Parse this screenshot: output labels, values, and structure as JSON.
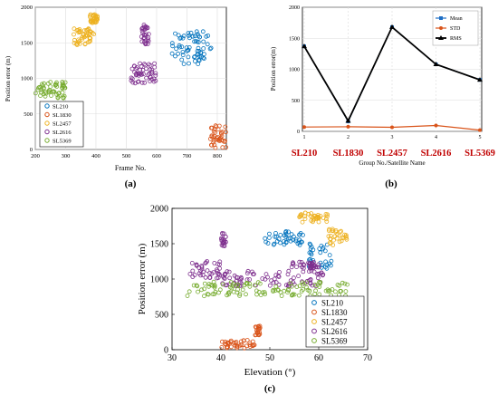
{
  "panel_labels": {
    "a": "(a)",
    "b": "(b)",
    "c": "(c)"
  },
  "colors": {
    "SL210": "#0072BD",
    "SL1830": "#D95319",
    "SL2457": "#EDB120",
    "SL2616": "#7E2F8E",
    "SL5369": "#77AC30",
    "mean": "#1f6fc5",
    "std": "#d9541a",
    "rms": "#000000",
    "satellite_label": "#c00000"
  },
  "chart_data": [
    {
      "id": "a",
      "type": "scatter",
      "xlabel": "Frame No.",
      "ylabel": "Position error (m)",
      "xlim": [
        200,
        830
      ],
      "ylim": [
        0,
        2000
      ],
      "xticks": [
        200,
        300,
        400,
        500,
        600,
        700,
        800
      ],
      "yticks": [
        0,
        500,
        1000,
        1500,
        2000
      ],
      "grid": true,
      "legend_position": "bottom-left",
      "series": [
        {
          "name": "SL210",
          "clusters": [
            {
              "x": [
                650,
                780
              ],
              "y": [
                1200,
                1660
              ]
            }
          ]
        },
        {
          "name": "SL1830",
          "clusters": [
            {
              "x": [
                775,
                830
              ],
              "y": [
                20,
                340
              ]
            }
          ]
        },
        {
          "name": "SL2457",
          "clusters": [
            {
              "x": [
                325,
                395
              ],
              "y": [
                1460,
                1700
              ]
            },
            {
              "x": [
                380,
                405
              ],
              "y": [
                1780,
                1900
              ]
            }
          ]
        },
        {
          "name": "SL2616",
          "clusters": [
            {
              "x": [
                515,
                600
              ],
              "y": [
                930,
                1220
              ]
            },
            {
              "x": [
                550,
                575
              ],
              "y": [
                1480,
                1760
              ]
            }
          ]
        },
        {
          "name": "SL5369",
          "clusters": [
            {
              "x": [
                200,
                300
              ],
              "y": [
                720,
                950
              ]
            }
          ]
        }
      ]
    },
    {
      "id": "b",
      "type": "line",
      "xlabel": "Group No./Satellite Name",
      "ylabel": "Position error(m)",
      "categories": [
        "1",
        "2",
        "3",
        "4",
        "5"
      ],
      "satellite_names": [
        "SL210",
        "SL1830",
        "SL2457",
        "SL2616",
        "SL5369"
      ],
      "ylim": [
        0,
        2000
      ],
      "yticks": [
        0,
        500,
        1000,
        1500,
        2000
      ],
      "grid": true,
      "legend_position": "top-right",
      "series": [
        {
          "name": "Mean",
          "values": [
            1370,
            160,
            1680,
            1080,
            830
          ]
        },
        {
          "name": "STD",
          "values": [
            70,
            75,
            65,
            95,
            20
          ]
        },
        {
          "name": "RMS",
          "values": [
            1370,
            170,
            1680,
            1080,
            830
          ]
        }
      ]
    },
    {
      "id": "c",
      "type": "scatter",
      "xlabel": "Elevation (°)",
      "ylabel": "Position error (m)",
      "xlim": [
        30,
        70
      ],
      "ylim": [
        0,
        2000
      ],
      "xticks": [
        30,
        40,
        50,
        60,
        70
      ],
      "yticks": [
        0,
        500,
        1000,
        1500,
        2000
      ],
      "legend_position": "bottom-right",
      "series": [
        {
          "name": "SL210",
          "clusters": [
            {
              "x": [
                49,
                57
              ],
              "y": [
                1480,
                1680
              ]
            },
            {
              "x": [
                58,
                63
              ],
              "y": [
                1150,
                1530
              ]
            }
          ]
        },
        {
          "name": "SL1830",
          "clusters": [
            {
              "x": [
                40,
                47
              ],
              "y": [
                20,
                140
              ]
            },
            {
              "x": [
                47,
                48
              ],
              "y": [
                200,
                340
              ]
            }
          ]
        },
        {
          "name": "SL2457",
          "clusters": [
            {
              "x": [
                56,
                62
              ],
              "y": [
                1800,
                1940
              ]
            },
            {
              "x": [
                62,
                66
              ],
              "y": [
                1480,
                1720
              ]
            }
          ]
        },
        {
          "name": "SL2616",
          "clusters": [
            {
              "x": [
                33,
                40
              ],
              "y": [
                1000,
                1260
              ]
            },
            {
              "x": [
                40,
                62
              ],
              "y": [
                900,
                1120
              ]
            },
            {
              "x": [
                40,
                41
              ],
              "y": [
                1450,
                1650
              ]
            },
            {
              "x": [
                54,
                60
              ],
              "y": [
                1150,
                1250
              ]
            }
          ]
        },
        {
          "name": "SL5369",
          "clusters": [
            {
              "x": [
                33,
                66
              ],
              "y": [
                760,
                960
              ]
            }
          ]
        }
      ]
    }
  ]
}
